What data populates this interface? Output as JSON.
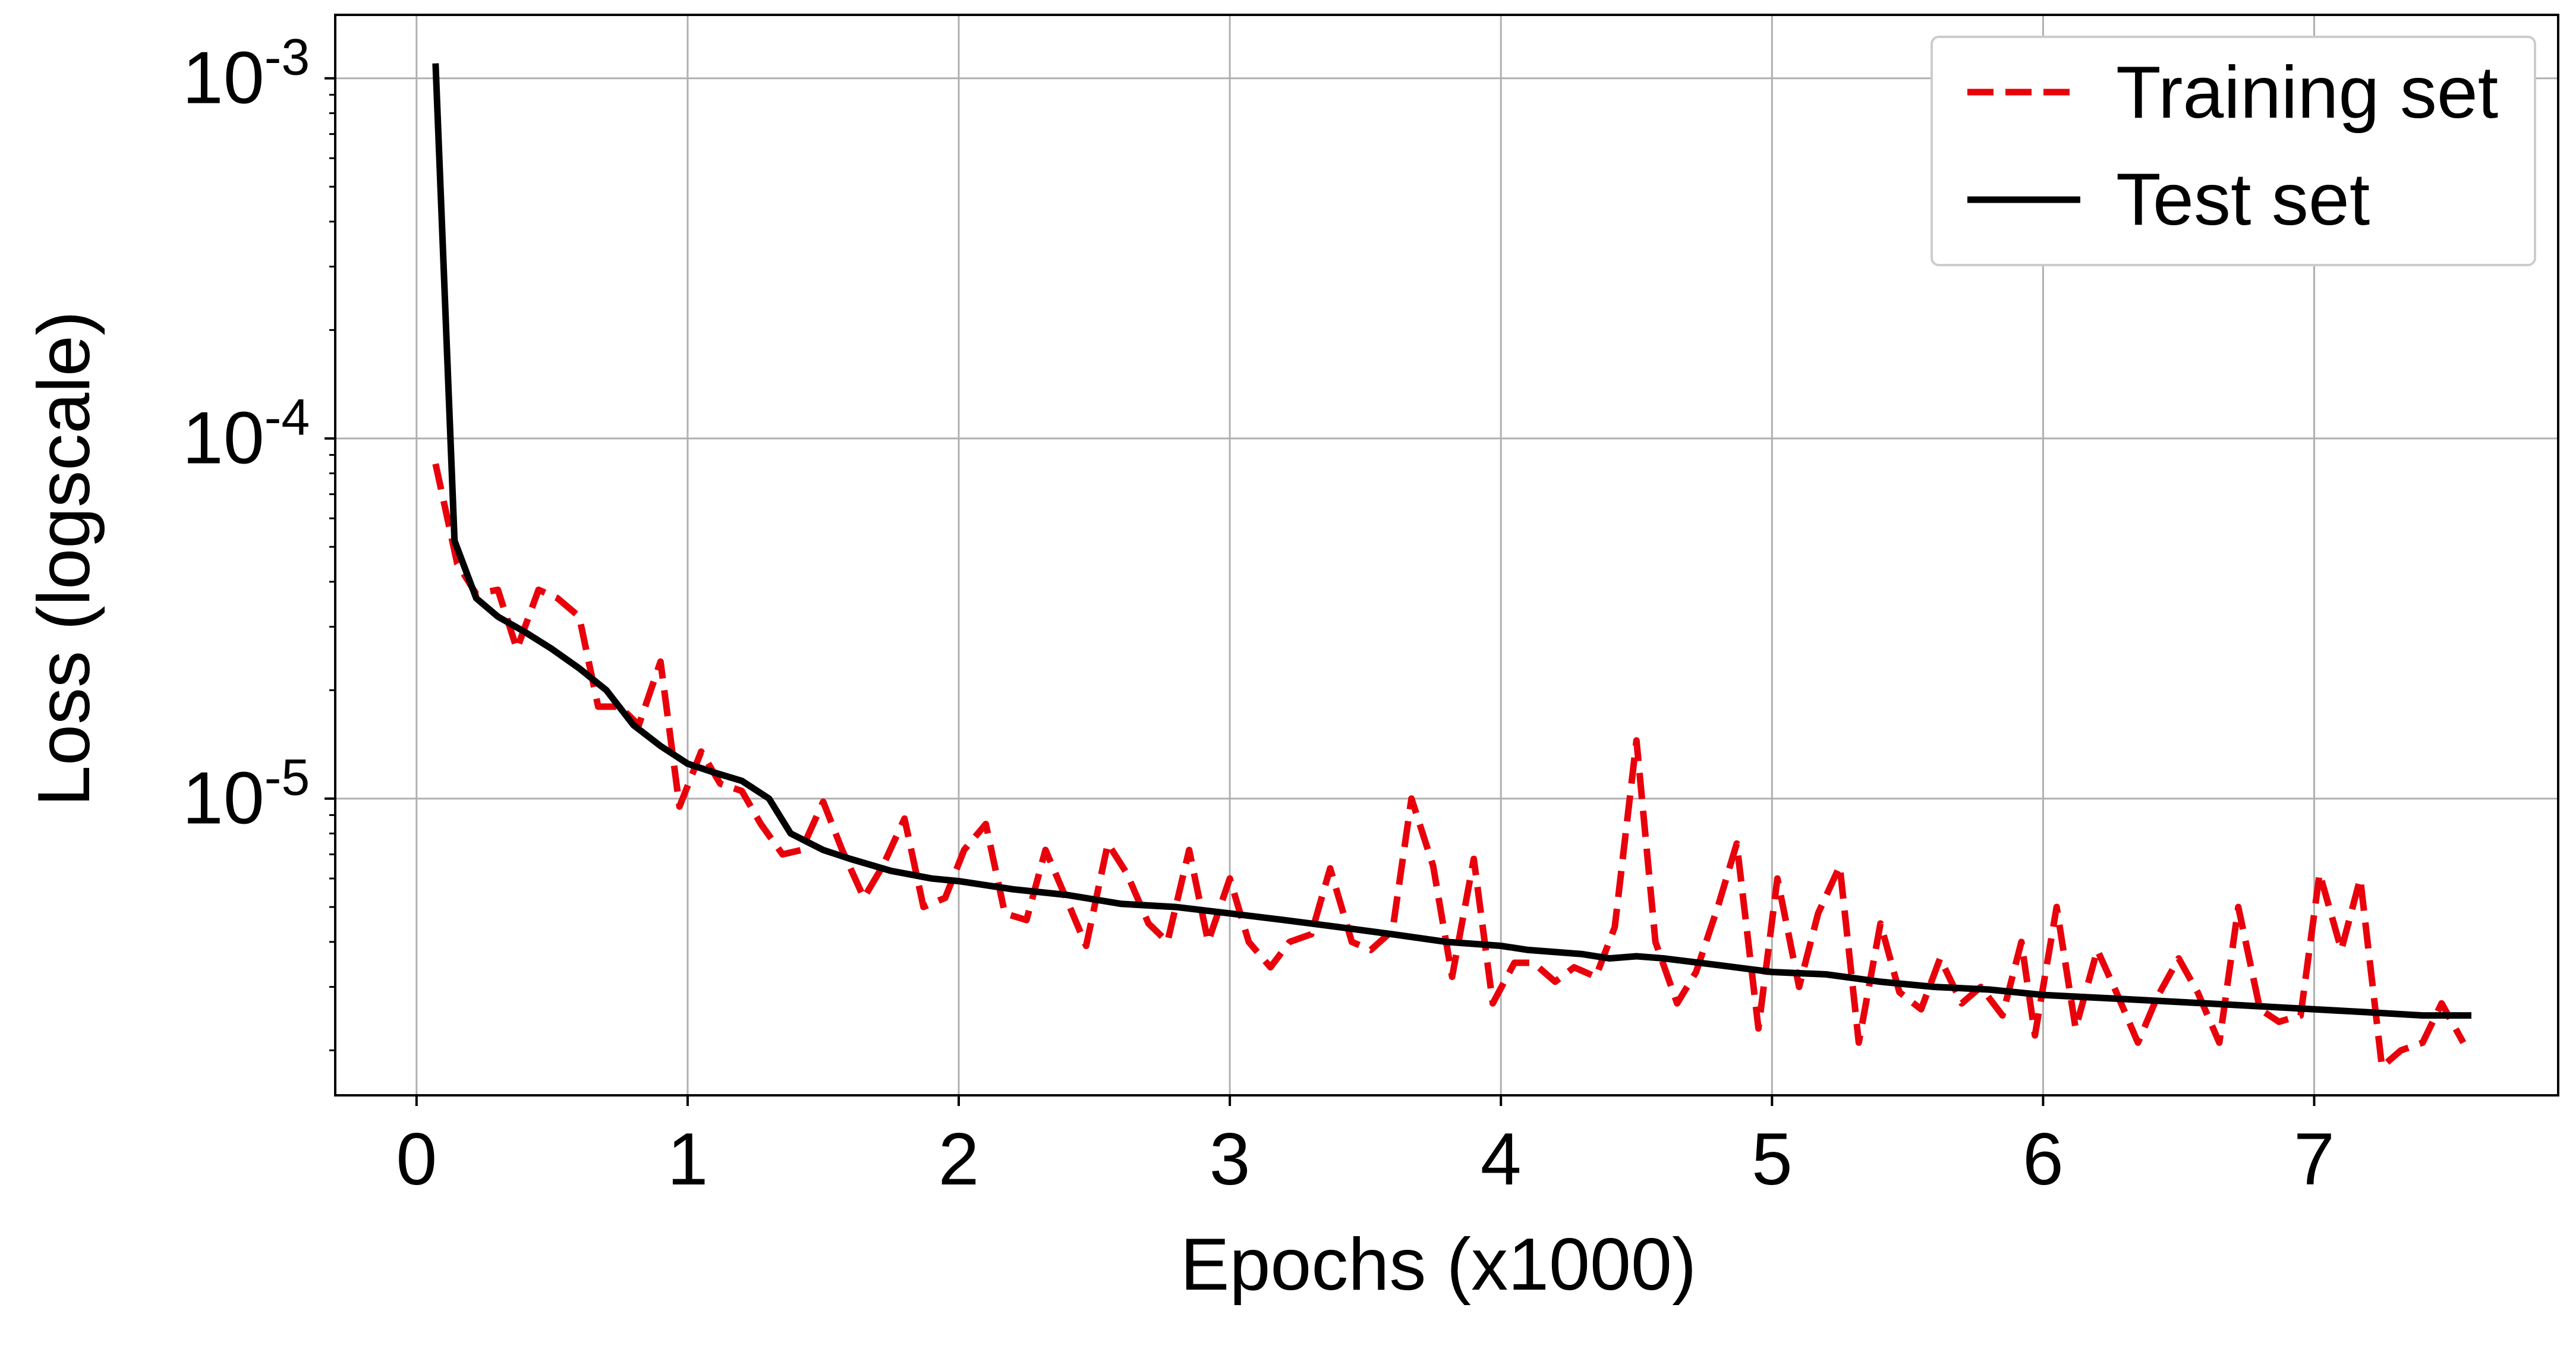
{
  "chart_data": {
    "type": "line",
    "xlabel": "Epochs (x1000)",
    "ylabel": "Loss (logscale)",
    "xlim": [
      -0.3,
      7.9
    ],
    "ylim": [
      1.5e-06,
      0.0015
    ],
    "yscale": "log",
    "grid": true,
    "legend_position": "top-right",
    "x_ticks": [
      {
        "value": 0,
        "label": "0"
      },
      {
        "value": 1,
        "label": "1"
      },
      {
        "value": 2,
        "label": "2"
      },
      {
        "value": 3,
        "label": "3"
      },
      {
        "value": 4,
        "label": "4"
      },
      {
        "value": 5,
        "label": "5"
      },
      {
        "value": 6,
        "label": "6"
      },
      {
        "value": 7,
        "label": "7"
      }
    ],
    "y_ticks": [
      {
        "value": 0.001,
        "base": "10",
        "exp": "-3"
      },
      {
        "value": 0.0001,
        "base": "10",
        "exp": "-4"
      },
      {
        "value": 1e-05,
        "base": "10",
        "exp": "-5"
      }
    ],
    "series": [
      {
        "name": "Training set",
        "color": "#e8000b",
        "style": "dashed",
        "points": [
          [
            0.07,
            8.5e-05
          ],
          [
            0.15,
            4.5e-05
          ],
          [
            0.22,
            3.7e-05
          ],
          [
            0.3,
            3.8e-05
          ],
          [
            0.37,
            2.6e-05
          ],
          [
            0.45,
            3.8e-05
          ],
          [
            0.52,
            3.6e-05
          ],
          [
            0.6,
            3.2e-05
          ],
          [
            0.67,
            1.8e-05
          ],
          [
            0.75,
            1.8e-05
          ],
          [
            0.82,
            1.6e-05
          ],
          [
            0.9,
            2.4e-05
          ],
          [
            0.97,
            9.5e-06
          ],
          [
            1.05,
            1.35e-05
          ],
          [
            1.12,
            1.1e-05
          ],
          [
            1.2,
            1.05e-05
          ],
          [
            1.27,
            8.5e-06
          ],
          [
            1.35,
            7e-06
          ],
          [
            1.42,
            7.2e-06
          ],
          [
            1.5,
            9.8e-06
          ],
          [
            1.57,
            7.2e-06
          ],
          [
            1.65,
            5.3e-06
          ],
          [
            1.72,
            6.5e-06
          ],
          [
            1.8,
            8.8e-06
          ],
          [
            1.87,
            5e-06
          ],
          [
            1.95,
            5.3e-06
          ],
          [
            2.02,
            7.2e-06
          ],
          [
            2.1,
            8.5e-06
          ],
          [
            2.17,
            4.8e-06
          ],
          [
            2.25,
            4.6e-06
          ],
          [
            2.32,
            7.2e-06
          ],
          [
            2.4,
            5.2e-06
          ],
          [
            2.47,
            3.9e-06
          ],
          [
            2.55,
            7.5e-06
          ],
          [
            2.62,
            6.2e-06
          ],
          [
            2.7,
            4.5e-06
          ],
          [
            2.77,
            4e-06
          ],
          [
            2.85,
            7.2e-06
          ],
          [
            2.92,
            4e-06
          ],
          [
            3.0,
            6e-06
          ],
          [
            3.07,
            4e-06
          ],
          [
            3.15,
            3.4e-06
          ],
          [
            3.22,
            4e-06
          ],
          [
            3.3,
            4.2e-06
          ],
          [
            3.37,
            6.4e-06
          ],
          [
            3.45,
            4e-06
          ],
          [
            3.52,
            3.8e-06
          ],
          [
            3.6,
            4.3e-06
          ],
          [
            3.67,
            1e-05
          ],
          [
            3.75,
            6.5e-06
          ],
          [
            3.82,
            3.2e-06
          ],
          [
            3.9,
            6.8e-06
          ],
          [
            3.97,
            2.7e-06
          ],
          [
            4.05,
            3.5e-06
          ],
          [
            4.12,
            3.5e-06
          ],
          [
            4.2,
            3.1e-06
          ],
          [
            4.27,
            3.4e-06
          ],
          [
            4.35,
            3.2e-06
          ],
          [
            4.42,
            4.4e-06
          ],
          [
            4.5,
            1.45e-05
          ],
          [
            4.57,
            4e-06
          ],
          [
            4.65,
            2.7e-06
          ],
          [
            4.72,
            3.3e-06
          ],
          [
            4.8,
            5e-06
          ],
          [
            4.87,
            7.5e-06
          ],
          [
            4.95,
            2.3e-06
          ],
          [
            5.02,
            6e-06
          ],
          [
            5.1,
            3e-06
          ],
          [
            5.17,
            4.8e-06
          ],
          [
            5.25,
            6.5e-06
          ],
          [
            5.32,
            2.1e-06
          ],
          [
            5.4,
            4.5e-06
          ],
          [
            5.47,
            2.9e-06
          ],
          [
            5.55,
            2.6e-06
          ],
          [
            5.62,
            3.6e-06
          ],
          [
            5.7,
            2.7e-06
          ],
          [
            5.77,
            3e-06
          ],
          [
            5.85,
            2.5e-06
          ],
          [
            5.92,
            4e-06
          ],
          [
            5.97,
            2.2e-06
          ],
          [
            6.05,
            5e-06
          ],
          [
            6.12,
            2.3e-06
          ],
          [
            6.2,
            3.8e-06
          ],
          [
            6.27,
            2.9e-06
          ],
          [
            6.35,
            2.1e-06
          ],
          [
            6.42,
            2.8e-06
          ],
          [
            6.5,
            3.6e-06
          ],
          [
            6.57,
            2.9e-06
          ],
          [
            6.65,
            2.1e-06
          ],
          [
            6.72,
            5e-06
          ],
          [
            6.8,
            2.6e-06
          ],
          [
            6.87,
            2.4e-06
          ],
          [
            6.95,
            2.5e-06
          ],
          [
            7.02,
            6.2e-06
          ],
          [
            7.1,
            3.8e-06
          ],
          [
            7.17,
            6e-06
          ],
          [
            7.25,
            1.8e-06
          ],
          [
            7.32,
            2e-06
          ],
          [
            7.4,
            2.1e-06
          ],
          [
            7.47,
            2.7e-06
          ],
          [
            7.55,
            2.1e-06
          ]
        ]
      },
      {
        "name": "Test set",
        "color": "#000000",
        "style": "solid",
        "points": [
          [
            0.07,
            0.0011
          ],
          [
            0.14,
            5.2e-05
          ],
          [
            0.22,
            3.6e-05
          ],
          [
            0.3,
            3.2e-05
          ],
          [
            0.4,
            2.9e-05
          ],
          [
            0.5,
            2.6e-05
          ],
          [
            0.6,
            2.3e-05
          ],
          [
            0.7,
            2e-05
          ],
          [
            0.8,
            1.6e-05
          ],
          [
            0.9,
            1.4e-05
          ],
          [
            1.0,
            1.25e-05
          ],
          [
            1.1,
            1.18e-05
          ],
          [
            1.2,
            1.12e-05
          ],
          [
            1.3,
            1e-05
          ],
          [
            1.38,
            8e-06
          ],
          [
            1.5,
            7.2e-06
          ],
          [
            1.6,
            6.8e-06
          ],
          [
            1.75,
            6.3e-06
          ],
          [
            1.9,
            6e-06
          ],
          [
            2.0,
            5.9e-06
          ],
          [
            2.2,
            5.6e-06
          ],
          [
            2.4,
            5.4e-06
          ],
          [
            2.6,
            5.1e-06
          ],
          [
            2.8,
            5e-06
          ],
          [
            3.0,
            4.8e-06
          ],
          [
            3.2,
            4.6e-06
          ],
          [
            3.4,
            4.4e-06
          ],
          [
            3.6,
            4.2e-06
          ],
          [
            3.8,
            4e-06
          ],
          [
            4.0,
            3.9e-06
          ],
          [
            4.1,
            3.8e-06
          ],
          [
            4.3,
            3.7e-06
          ],
          [
            4.4,
            3.6e-06
          ],
          [
            4.5,
            3.65e-06
          ],
          [
            4.6,
            3.6e-06
          ],
          [
            4.8,
            3.45e-06
          ],
          [
            5.0,
            3.3e-06
          ],
          [
            5.2,
            3.25e-06
          ],
          [
            5.4,
            3.1e-06
          ],
          [
            5.6,
            3e-06
          ],
          [
            5.8,
            2.95e-06
          ],
          [
            6.0,
            2.85e-06
          ],
          [
            6.2,
            2.8e-06
          ],
          [
            6.4,
            2.75e-06
          ],
          [
            6.6,
            2.7e-06
          ],
          [
            6.8,
            2.65e-06
          ],
          [
            7.0,
            2.6e-06
          ],
          [
            7.2,
            2.55e-06
          ],
          [
            7.4,
            2.5e-06
          ],
          [
            7.58,
            2.5e-06
          ]
        ]
      }
    ]
  }
}
